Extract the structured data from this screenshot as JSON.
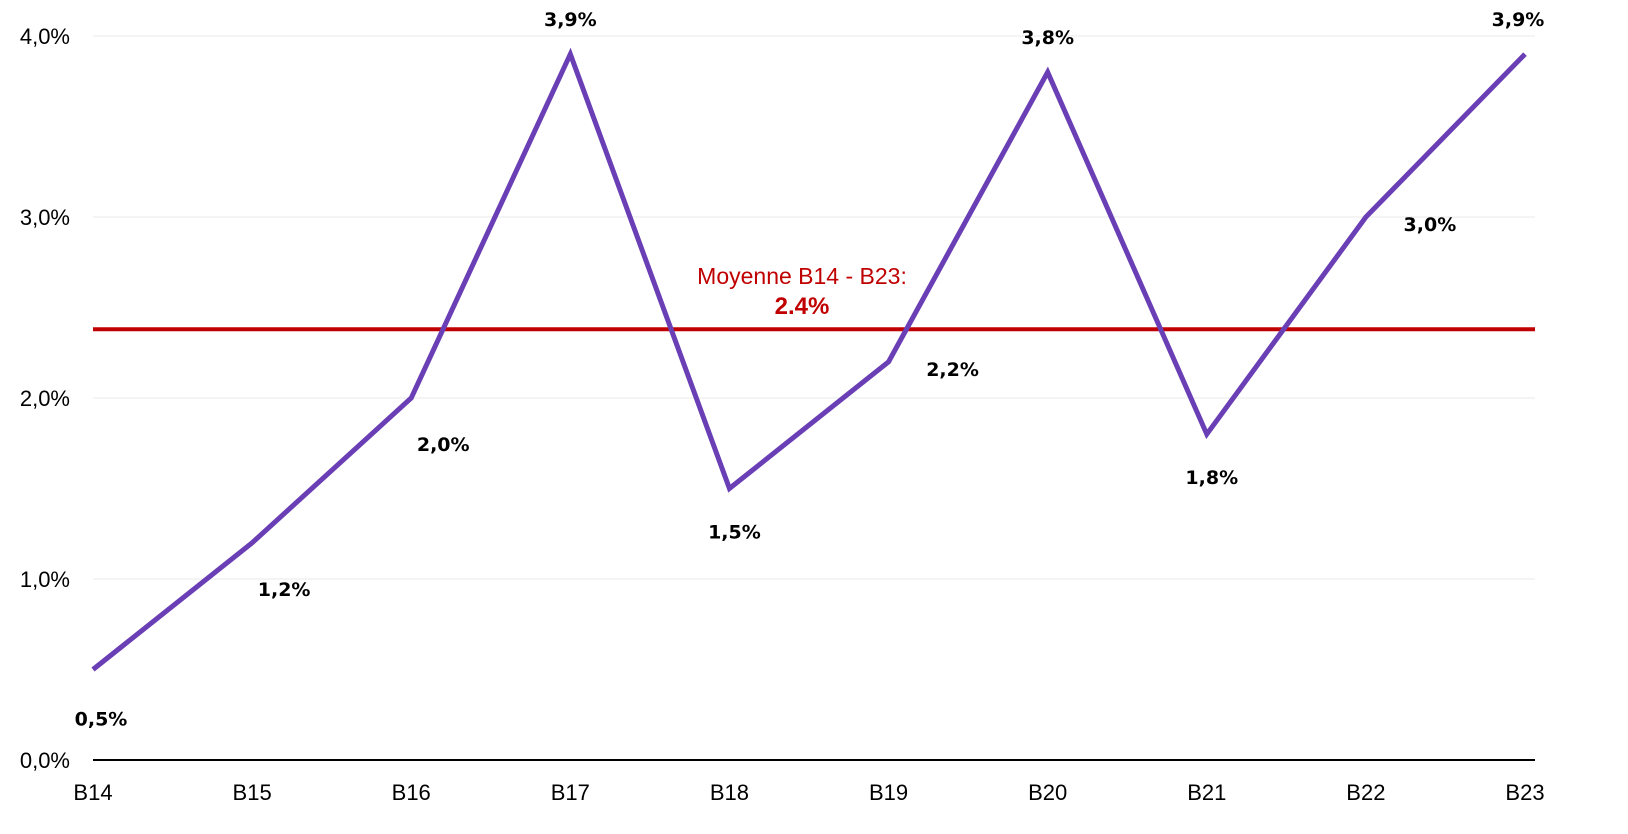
{
  "chart_data": {
    "type": "line",
    "title": "",
    "xlabel": "",
    "ylabel": "",
    "categories": [
      "B14",
      "B15",
      "B16",
      "B17",
      "B18",
      "B19",
      "B20",
      "B21",
      "B22",
      "B23"
    ],
    "series": [
      {
        "values": [
          0.5,
          1.2,
          2.0,
          3.9,
          1.5,
          2.2,
          3.8,
          1.8,
          3.0,
          3.9
        ],
        "data_labels": [
          "0,5%",
          "1,2%",
          "2,0%",
          "3,9%",
          "1,5%",
          "2,2%",
          "3,8%",
          "1,8%",
          "3,0%",
          "3,9%"
        ],
        "color": "#6a3fb5"
      }
    ],
    "ylim": [
      0,
      4
    ],
    "y_ticks": [
      0,
      1,
      2,
      3,
      4
    ],
    "y_tick_labels": [
      "0,0%",
      "1,0%",
      "2,0%",
      "3,0%",
      "4,0%"
    ],
    "grid": true,
    "average_line": {
      "value": 2.38,
      "label": "Moyenne B14 - B23:",
      "value_label": "2.4%",
      "color": "#c00000"
    }
  }
}
